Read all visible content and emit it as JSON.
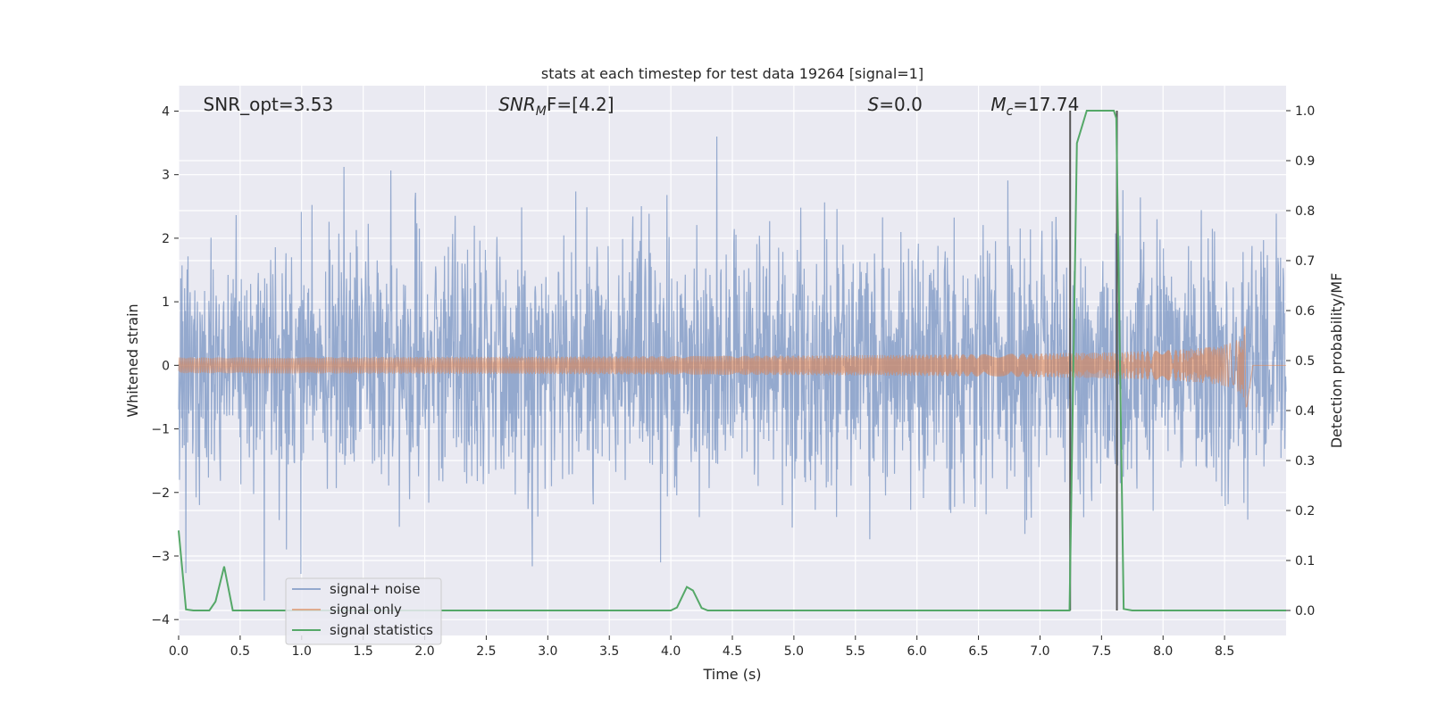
{
  "chart_data": {
    "type": "line",
    "title": "stats at each timestep for test data 19264 [signal=1]",
    "xlabel": "Time (s)",
    "ylabel": "Whitened strain",
    "y2label": "Detection probability/MF",
    "xlim": [
      0.0,
      9.0
    ],
    "ylim": [
      -4.25,
      4.4
    ],
    "y2lim": [
      -0.05,
      1.05
    ],
    "xticks": [
      0.0,
      0.5,
      1.0,
      1.5,
      2.0,
      2.5,
      3.0,
      3.5,
      4.0,
      4.5,
      5.0,
      5.5,
      6.0,
      6.5,
      7.0,
      7.5,
      8.0,
      8.5
    ],
    "xtick_labels": [
      "0.0",
      "0.5",
      "1.0",
      "1.5",
      "2.0",
      "2.5",
      "3.0",
      "3.5",
      "4.0",
      "4.5",
      "5.0",
      "5.5",
      "6.0",
      "6.5",
      "7.0",
      "7.5",
      "8.0",
      "8.5"
    ],
    "yticks": [
      4,
      3,
      2,
      1,
      0,
      -1,
      -2,
      -3,
      -4
    ],
    "ytick_labels": [
      "4",
      "3",
      "2",
      "1",
      "0",
      "−1",
      "−2",
      "−3",
      "−4"
    ],
    "y2ticks": [
      1.0,
      0.9,
      0.8,
      0.7,
      0.6,
      0.5,
      0.4,
      0.3,
      0.2,
      0.1,
      0.0
    ],
    "y2tick_labels": [
      "1.0",
      "0.9",
      "0.8",
      "0.7",
      "0.6",
      "0.5",
      "0.4",
      "0.3",
      "0.2",
      "0.1",
      "0.0"
    ],
    "grid": true,
    "legend_placement": "lower-left",
    "annotations": [
      {
        "id": "snr-opt",
        "x": 0.2,
        "label_main": "SNR_opt=3.53",
        "italic": "",
        "sub": "",
        "rest": ""
      },
      {
        "id": "snr-mf",
        "x": 2.6,
        "label_main": "",
        "italic": "SNR",
        "sub": "M",
        "rest": "F=[4.2]"
      },
      {
        "id": "s-stat",
        "x": 5.6,
        "label_main": "",
        "italic": "S",
        "sub": "",
        "rest": "=0.0"
      },
      {
        "id": "mc",
        "x": 6.6,
        "label_main": "",
        "italic": "M",
        "sub": "c",
        "rest": "=17.74"
      }
    ],
    "series": [
      {
        "name": "signal+ noise",
        "color": "#4c72b0",
        "kind": "noise",
        "x_range": [
          0.0,
          9.0
        ],
        "sigma": 1.0,
        "peak_range": [
          -3.7,
          4.0
        ]
      },
      {
        "name": "signal only",
        "color": "#dd8452",
        "kind": "chirp",
        "merger_time": 8.68,
        "peak_amplitude": 0.85
      },
      {
        "name": "signal statistics",
        "color": "#55a868",
        "axis": "right",
        "x": [
          0.0,
          0.06,
          0.12,
          0.2,
          0.25,
          0.3,
          0.37,
          0.44,
          0.5,
          1.0,
          2.0,
          3.0,
          3.8,
          4.0,
          4.05,
          4.13,
          4.18,
          4.25,
          4.3,
          5.0,
          6.0,
          7.0,
          7.24,
          7.3,
          7.38,
          7.6,
          7.62,
          7.68,
          7.75,
          8.0,
          9.0
        ],
        "y": [
          0.16,
          0.002,
          0.0,
          0.0,
          0.0,
          0.018,
          0.088,
          0.0,
          0.0,
          0.0,
          0.0,
          0.0,
          0.0,
          0.0,
          0.006,
          0.047,
          0.04,
          0.005,
          0.0,
          0.0,
          0.0,
          0.0,
          0.0,
          0.935,
          1.0,
          1.0,
          0.985,
          0.003,
          0.0,
          0.0,
          0.0
        ]
      }
    ],
    "vlines": [
      {
        "x": 7.245,
        "y2_from": 0.0,
        "y2_to": 1.0,
        "color": "#555555"
      },
      {
        "x": 7.625,
        "y2_from": 0.0,
        "y2_to": 1.0,
        "color": "#555555"
      }
    ]
  }
}
